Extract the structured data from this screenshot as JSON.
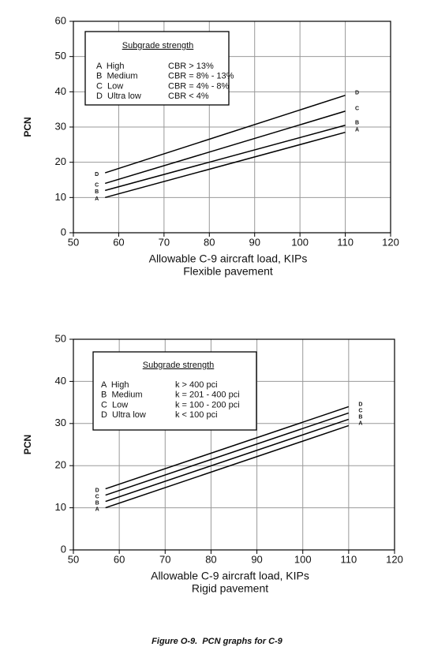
{
  "chart_data": [
    {
      "type": "line",
      "xlabel": "Allowable C-9 aircraft load, KIPs",
      "subtitle": "Flexible pavement",
      "ylabel": "PCN",
      "x": [
        57,
        110
      ],
      "xlim": [
        50,
        120
      ],
      "xticks": [
        50,
        60,
        70,
        80,
        90,
        100,
        110,
        120
      ],
      "ylim": [
        0,
        60
      ],
      "yticks": [
        0,
        10,
        20,
        30,
        40,
        50,
        60
      ],
      "grid": true,
      "series": [
        {
          "name": "A",
          "color": "#000000",
          "values": [
            10,
            28.5
          ]
        },
        {
          "name": "B",
          "color": "#000000",
          "values": [
            12,
            30.5
          ]
        },
        {
          "name": "C",
          "color": "#000000",
          "values": [
            14,
            34.5
          ]
        },
        {
          "name": "D",
          "color": "#000000",
          "values": [
            17,
            39
          ]
        }
      ],
      "annotation": {
        "title": "Subgrade strength",
        "rows": [
          [
            "A  High",
            "CBR > 13%"
          ],
          [
            "B  Medium",
            "CBR = 8% - 13%"
          ],
          [
            "C  Low",
            "CBR = 4% - 8%"
          ],
          [
            "D  Ultra low",
            "CBR < 4%"
          ]
        ]
      }
    },
    {
      "type": "line",
      "xlabel": "Allowable C-9 aircraft load, KIPs",
      "subtitle": "Rigid pavement",
      "ylabel": "PCN",
      "x": [
        57,
        110
      ],
      "xlim": [
        50,
        120
      ],
      "xticks": [
        50,
        60,
        70,
        80,
        90,
        100,
        110,
        120
      ],
      "ylim": [
        0,
        50
      ],
      "yticks": [
        0,
        10,
        20,
        30,
        40,
        50
      ],
      "grid": true,
      "series": [
        {
          "name": "A",
          "color": "#000000",
          "values": [
            10,
            29.5
          ]
        },
        {
          "name": "B",
          "color": "#000000",
          "values": [
            11.5,
            31
          ]
        },
        {
          "name": "C",
          "color": "#000000",
          "values": [
            13,
            32.5
          ]
        },
        {
          "name": "D",
          "color": "#000000",
          "values": [
            14.5,
            34
          ]
        }
      ],
      "annotation": {
        "title": "Subgrade strength",
        "rows": [
          [
            "A  High",
            "k > 400 pci"
          ],
          [
            "B  Medium",
            "k = 201 - 400 pci"
          ],
          [
            "C  Low",
            "k = 100 - 200 pci"
          ],
          [
            "D  Ultra low",
            "k < 100 pci"
          ]
        ]
      }
    }
  ],
  "caption": "Figure O-9.  PCN graphs for C-9"
}
